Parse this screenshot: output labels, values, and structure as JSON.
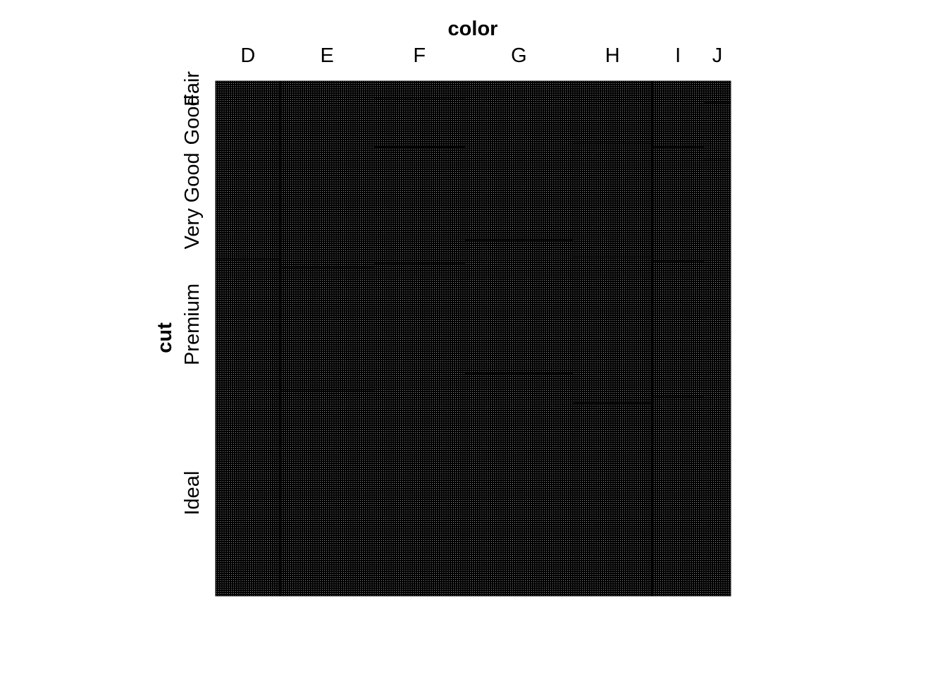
{
  "chart_data": {
    "type": "mosaic",
    "title": "",
    "xlabel": "color",
    "ylabel": "cut",
    "x_categories": [
      "D",
      "E",
      "F",
      "G",
      "H",
      "I",
      "J"
    ],
    "y_categories": [
      "Fair",
      "Good",
      "Very Good",
      "Premium",
      "Ideal"
    ],
    "counts": {
      "D": {
        "Fair": 163,
        "Good": 662,
        "Very Good": 1513,
        "Premium": 1603,
        "Ideal": 2834
      },
      "E": {
        "Fair": 224,
        "Good": 933,
        "Very Good": 2400,
        "Premium": 2337,
        "Ideal": 3903
      },
      "F": {
        "Fair": 312,
        "Good": 909,
        "Very Good": 2164,
        "Premium": 2331,
        "Ideal": 3826
      },
      "G": {
        "Fair": 314,
        "Good": 871,
        "Very Good": 2299,
        "Premium": 2924,
        "Ideal": 4884
      },
      "H": {
        "Fair": 303,
        "Good": 702,
        "Very Good": 1824,
        "Premium": 2360,
        "Ideal": 3115
      },
      "I": {
        "Fair": 175,
        "Good": 522,
        "Very Good": 1204,
        "Premium": 1428,
        "Ideal": 2093
      },
      "J": {
        "Fair": 119,
        "Good": 307,
        "Very Good": 678,
        "Premium": 808,
        "Ideal": 896
      }
    },
    "fill": "#000000",
    "cell_pattern": "dense dot grid",
    "background": "#ffffff"
  }
}
